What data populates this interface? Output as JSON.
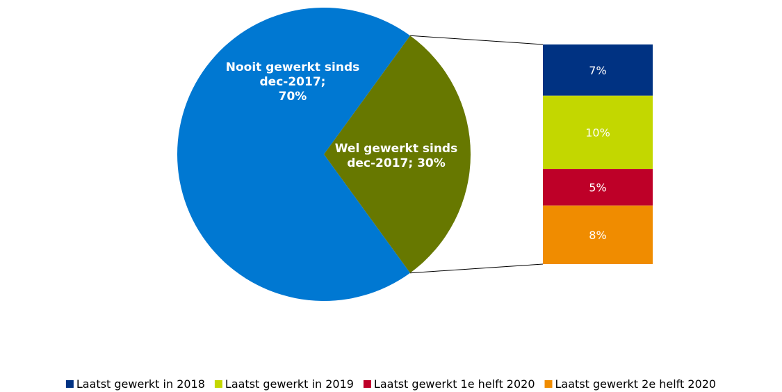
{
  "chart_data": {
    "type": "bar-of-pie",
    "pie": {
      "slices": [
        {
          "label_lines": [
            "Nooit gewerkt sinds",
            "dec-2017;",
            "70%"
          ],
          "value": 70,
          "color": "#0078d2"
        },
        {
          "label_lines": [
            "Wel gewerkt sinds",
            "dec-2017; 30%"
          ],
          "value": 30,
          "color": "#677800"
        }
      ]
    },
    "bar": {
      "breakdown_of": "Wel gewerkt sinds dec-2017",
      "segments": [
        {
          "name": "Laatst gewerkt in 2018",
          "value": 7,
          "label": "7%",
          "color": "#003282"
        },
        {
          "name": "Laatst gewerkt in 2019",
          "value": 10,
          "label": "10%",
          "color": "#c3d700"
        },
        {
          "name": "Laatst gewerkt 1e helft 2020",
          "value": 5,
          "label": "5%",
          "color": "#be0028"
        },
        {
          "name": "Laatst gewerkt 2e helft 2020",
          "value": 8,
          "label": "8%",
          "color": "#f08c00"
        }
      ]
    },
    "connector_color": "#000000",
    "legend_position": "bottom"
  }
}
